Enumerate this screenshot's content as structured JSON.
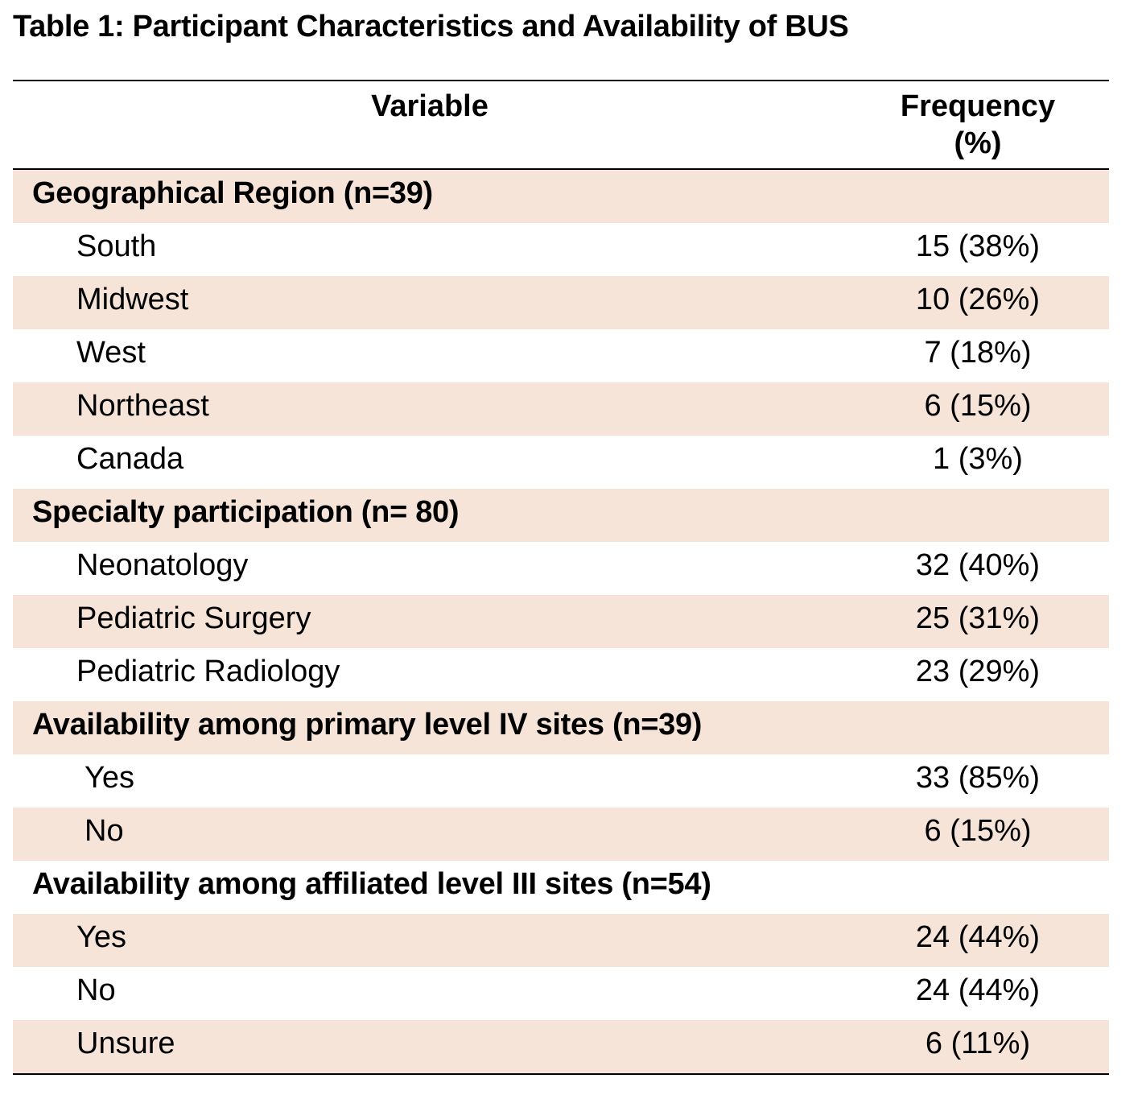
{
  "title": "Table 1: Participant Characteristics and Availability of BUS",
  "header": {
    "variable": "Variable",
    "frequency_line1": "Frequency",
    "frequency_line2": "(%)"
  },
  "rows": [
    {
      "label": "Geographical Region (n=39)",
      "value": ""
    },
    {
      "label": "South",
      "value": "15 (38%)"
    },
    {
      "label": "Midwest",
      "value": "10 (26%)"
    },
    {
      "label": "West",
      "value": "7 (18%)"
    },
    {
      "label": "Northeast",
      "value": "6 (15%)"
    },
    {
      "label": "Canada",
      "value": "1 (3%)"
    },
    {
      "label": "Specialty participation (n= 80)",
      "value": ""
    },
    {
      "label": "Neonatology",
      "value": "32 (40%)"
    },
    {
      "label": "Pediatric Surgery",
      "value": "25 (31%)"
    },
    {
      "label": "Pediatric Radiology",
      "value": "23 (29%)"
    },
    {
      "label": "Availability among primary level IV sites (n=39)",
      "value": ""
    },
    {
      "label": "Yes",
      "value": "33 (85%)"
    },
    {
      "label": "No",
      "value": "6 (15%)"
    },
    {
      "label": "Availability among affiliated level III sites (n=54)",
      "value": ""
    },
    {
      "label": "Yes",
      "value": "24 (44%)"
    },
    {
      "label": "No",
      "value": "24 (44%)"
    },
    {
      "label": "Unsure",
      "value": "6 (11%)"
    }
  ]
}
